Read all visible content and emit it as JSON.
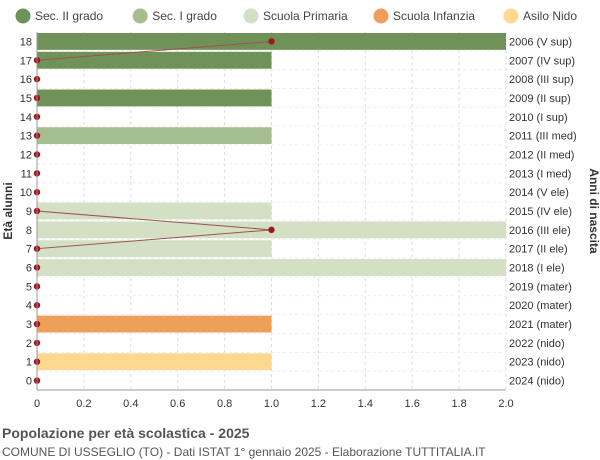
{
  "chart_data": {
    "type": "bar",
    "orientation": "horizontal",
    "ylabel": "Età alunni",
    "ylabel_right": "Anni di nascita",
    "xlim": [
      0,
      2.0
    ],
    "x_ticks": [
      "0",
      "0.2",
      "0.4",
      "0.6",
      "0.8",
      "1.0",
      "1.2",
      "1.4",
      "1.6",
      "1.8",
      "2.0"
    ],
    "grid": true,
    "legend_position": "top",
    "legend": [
      {
        "key": "sec2",
        "label": "Sec. II grado",
        "color": "#6e9257"
      },
      {
        "key": "sec1",
        "label": "Sec. I grado",
        "color": "#a4be92"
      },
      {
        "key": "prim",
        "label": "Scuola Primaria",
        "color": "#d3e0c4"
      },
      {
        "key": "inf",
        "label": "Scuola Infanzia",
        "color": "#ee9f58"
      },
      {
        "key": "nido",
        "label": "Asilo Nido",
        "color": "#fdd88f"
      },
      {
        "key": "stranieri",
        "label": "Stranieri",
        "color": "#c21117"
      }
    ],
    "rows": [
      {
        "age": "18",
        "birth": "2006 (V sup)",
        "value": 2,
        "school": "sec2",
        "stranieri": 1
      },
      {
        "age": "17",
        "birth": "2007 (IV sup)",
        "value": 1,
        "school": "sec2",
        "stranieri": 0
      },
      {
        "age": "16",
        "birth": "2008 (III sup)",
        "value": 0,
        "school": "sec2",
        "stranieri": 0
      },
      {
        "age": "15",
        "birth": "2009 (II sup)",
        "value": 1,
        "school": "sec2",
        "stranieri": 0
      },
      {
        "age": "14",
        "birth": "2010 (I sup)",
        "value": 0,
        "school": "sec1",
        "stranieri": 0
      },
      {
        "age": "13",
        "birth": "2011 (III med)",
        "value": 1,
        "school": "sec1",
        "stranieri": 0
      },
      {
        "age": "12",
        "birth": "2012 (II med)",
        "value": 0,
        "school": "sec1",
        "stranieri": 0
      },
      {
        "age": "11",
        "birth": "2013 (I med)",
        "value": 0,
        "school": "prim",
        "stranieri": 0
      },
      {
        "age": "10",
        "birth": "2014 (V ele)",
        "value": 0,
        "school": "prim",
        "stranieri": 0
      },
      {
        "age": "9",
        "birth": "2015 (IV ele)",
        "value": 1,
        "school": "prim",
        "stranieri": 0
      },
      {
        "age": "8",
        "birth": "2016 (III ele)",
        "value": 2,
        "school": "prim",
        "stranieri": 1
      },
      {
        "age": "7",
        "birth": "2017 (II ele)",
        "value": 1,
        "school": "prim",
        "stranieri": 0
      },
      {
        "age": "6",
        "birth": "2018 (I ele)",
        "value": 2,
        "school": "prim",
        "stranieri": 0
      },
      {
        "age": "5",
        "birth": "2019 (mater)",
        "value": 0,
        "school": "inf",
        "stranieri": 0
      },
      {
        "age": "4",
        "birth": "2020 (mater)",
        "value": 0,
        "school": "inf",
        "stranieri": 0
      },
      {
        "age": "3",
        "birth": "2021 (mater)",
        "value": 1,
        "school": "inf",
        "stranieri": 0
      },
      {
        "age": "2",
        "birth": "2022 (nido)",
        "value": 0,
        "school": "nido",
        "stranieri": 0
      },
      {
        "age": "1",
        "birth": "2023 (nido)",
        "value": 1,
        "school": "nido",
        "stranieri": 0
      },
      {
        "age": "0",
        "birth": "2024 (nido)",
        "value": 0,
        "school": "nido",
        "stranieri": 0
      }
    ]
  },
  "footer": {
    "title": "Popolazione per età scolastica - 2025",
    "subtitle": "COMUNE DI USSEGLIO (TO) - Dati ISTAT 1° gennaio 2025 - Elaborazione TUTTITALIA.IT"
  }
}
